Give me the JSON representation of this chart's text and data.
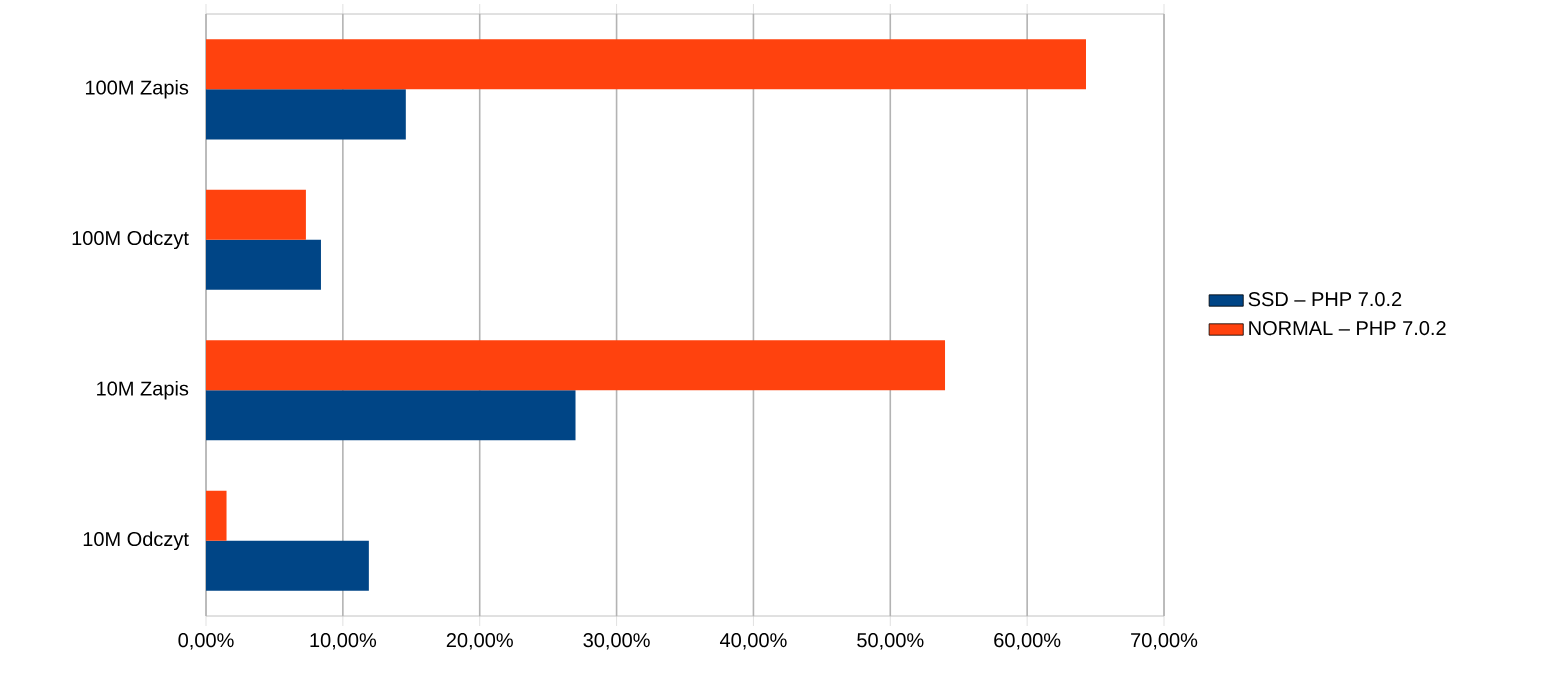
{
  "chart_data": {
    "type": "bar",
    "orientation": "horizontal",
    "categories": [
      "100M Zapis",
      "100M Odczyt",
      "10M Zapis",
      "10M Odczyt"
    ],
    "series": [
      {
        "name": "SSD – PHP 7.0.2",
        "color": "#004586",
        "values": [
          14.6,
          8.4,
          27.0,
          11.9
        ]
      },
      {
        "name": "NORMAL – PHP 7.0.2",
        "color": "#ff420e",
        "values": [
          64.3,
          7.3,
          54.0,
          1.5
        ]
      }
    ],
    "xlim": [
      0,
      70
    ],
    "xticks": [
      {
        "value": 0,
        "label": "0,00%"
      },
      {
        "value": 10,
        "label": "10,00%"
      },
      {
        "value": 20,
        "label": "20,00%"
      },
      {
        "value": 30,
        "label": "30,00%"
      },
      {
        "value": 40,
        "label": "40,00%"
      },
      {
        "value": 50,
        "label": "50,00%"
      },
      {
        "value": 60,
        "label": "60,00%"
      },
      {
        "value": 70,
        "label": "70,00%"
      }
    ],
    "grid": "x",
    "legend": "right"
  }
}
